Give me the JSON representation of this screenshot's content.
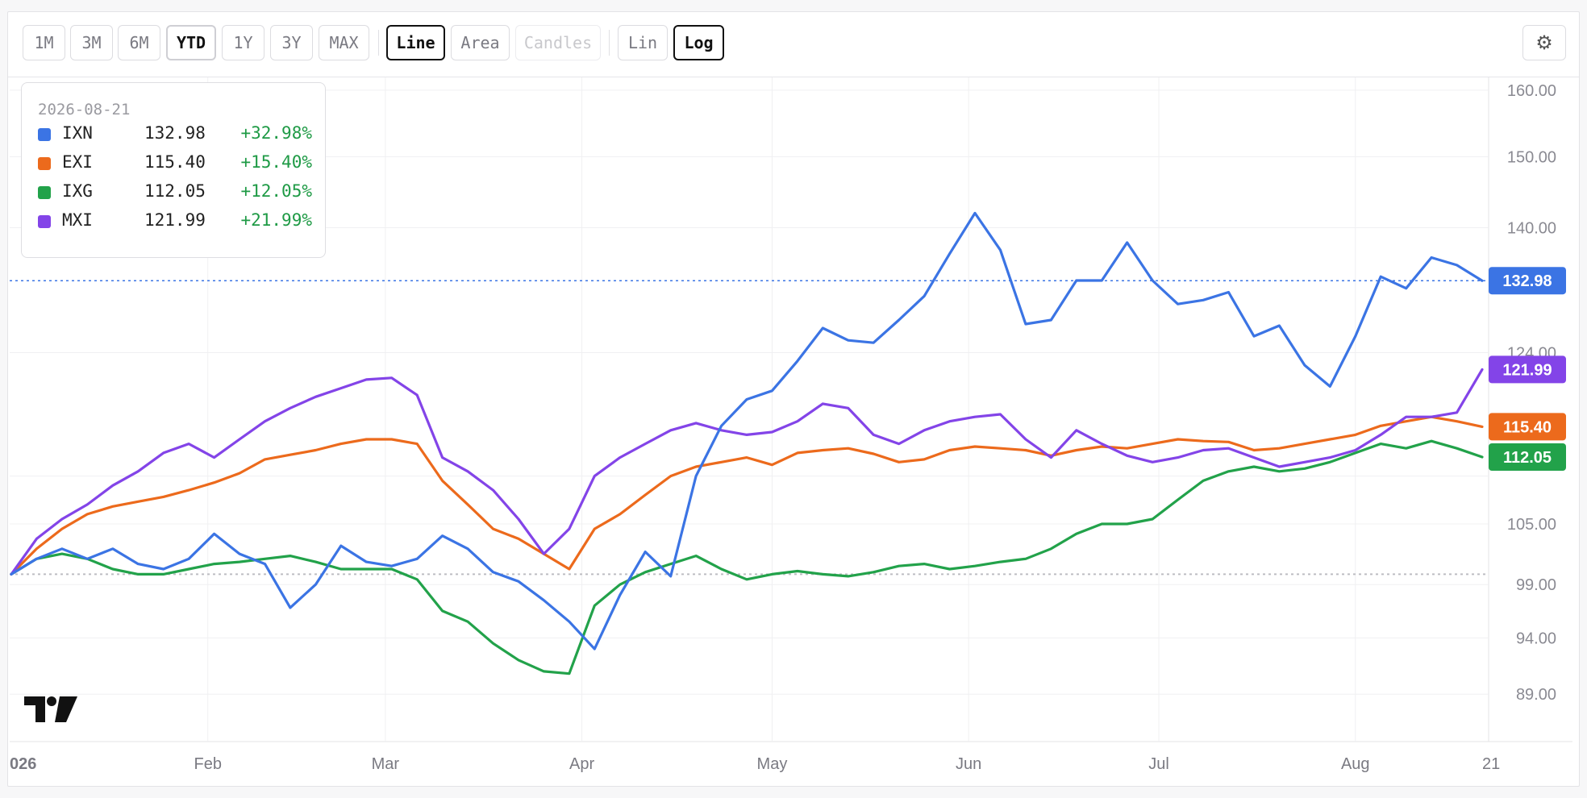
{
  "toolbar": {
    "ranges": [
      "1M",
      "3M",
      "6M",
      "YTD",
      "1Y",
      "3Y",
      "MAX"
    ],
    "selected_range": "YTD",
    "chart_types": [
      "Line",
      "Area",
      "Candles"
    ],
    "selected_chart_type": "Line",
    "disabled_chart_type": "Candles",
    "scales": [
      "Lin",
      "Log"
    ],
    "selected_scale": "Log",
    "settings_icon": "gear-icon"
  },
  "legend": {
    "date": "2026-08-21",
    "rows": [
      {
        "ticker": "IXN",
        "value": "132.98",
        "change": "+32.98%"
      },
      {
        "ticker": "EXI",
        "value": "115.40",
        "change": "+15.40%"
      },
      {
        "ticker": "IXG",
        "value": "112.05",
        "change": "+12.05%"
      },
      {
        "ticker": "MXI",
        "value": "121.99",
        "change": "+21.99%"
      }
    ]
  },
  "chart_data": {
    "type": "line",
    "scale": "log",
    "baseline": 100,
    "ylim": [
      85,
      162
    ],
    "y_ticks": [
      "160.00",
      "150.00",
      "140.00",
      "124.00",
      "105.00",
      "99.00",
      "94.00",
      "89.00"
    ],
    "y_ticks_hidden": [
      "110.00"
    ],
    "x_labels": [
      "026",
      "Feb",
      "Mar",
      "Apr",
      "May",
      "Jun",
      "Jul",
      "Aug",
      "21"
    ],
    "x_range": [
      "2026-01-01",
      "2026-08-21"
    ],
    "grid": true,
    "legend_position": "top-left",
    "series": [
      {
        "name": "IXN",
        "color": "#3b74e4",
        "last_label": "132.98",
        "crosshair": true,
        "x": [
          "2026-01-01",
          "2026-01-05",
          "2026-01-09",
          "2026-01-13",
          "2026-01-17",
          "2026-01-21",
          "2026-01-25",
          "2026-01-29",
          "2026-02-02",
          "2026-02-06",
          "2026-02-10",
          "2026-02-14",
          "2026-02-18",
          "2026-02-22",
          "2026-02-26",
          "2026-03-02",
          "2026-03-06",
          "2026-03-10",
          "2026-03-14",
          "2026-03-18",
          "2026-03-22",
          "2026-03-26",
          "2026-03-30",
          "2026-04-03",
          "2026-04-07",
          "2026-04-11",
          "2026-04-15",
          "2026-04-19",
          "2026-04-23",
          "2026-04-27",
          "2026-05-01",
          "2026-05-05",
          "2026-05-09",
          "2026-05-13",
          "2026-05-17",
          "2026-05-21",
          "2026-05-25",
          "2026-05-29",
          "2026-06-02",
          "2026-06-06",
          "2026-06-10",
          "2026-06-14",
          "2026-06-18",
          "2026-06-22",
          "2026-06-26",
          "2026-06-30",
          "2026-07-04",
          "2026-07-08",
          "2026-07-12",
          "2026-07-16",
          "2026-07-20",
          "2026-07-24",
          "2026-07-28",
          "2026-08-01",
          "2026-08-05",
          "2026-08-09",
          "2026-08-13",
          "2026-08-17",
          "2026-08-21"
        ],
        "values": [
          100,
          101.5,
          102.5,
          101.5,
          102.5,
          101,
          100.5,
          101.5,
          104,
          102,
          101,
          96.8,
          99,
          102.8,
          101.2,
          100.8,
          101.5,
          103.8,
          102.5,
          100.2,
          99.3,
          97.5,
          95.5,
          93,
          98,
          102.2,
          99.8,
          110,
          115.5,
          118.5,
          119.5,
          123,
          127,
          125.5,
          125.2,
          128,
          131,
          136.5,
          142,
          137,
          127.5,
          128,
          133,
          133,
          138,
          133,
          130,
          130.5,
          131.5,
          126,
          127.3,
          122.5,
          120,
          126,
          133.5,
          132,
          136,
          135,
          132.98
        ]
      },
      {
        "name": "EXI",
        "color": "#ec6a1c",
        "last_label": "115.40",
        "x": [
          "2026-01-01",
          "2026-01-05",
          "2026-01-09",
          "2026-01-13",
          "2026-01-17",
          "2026-01-21",
          "2026-01-25",
          "2026-01-29",
          "2026-02-02",
          "2026-02-06",
          "2026-02-10",
          "2026-02-14",
          "2026-02-18",
          "2026-02-22",
          "2026-02-26",
          "2026-03-02",
          "2026-03-06",
          "2026-03-10",
          "2026-03-14",
          "2026-03-18",
          "2026-03-22",
          "2026-03-26",
          "2026-03-30",
          "2026-04-03",
          "2026-04-07",
          "2026-04-11",
          "2026-04-15",
          "2026-04-19",
          "2026-04-23",
          "2026-04-27",
          "2026-05-01",
          "2026-05-05",
          "2026-05-09",
          "2026-05-13",
          "2026-05-17",
          "2026-05-21",
          "2026-05-25",
          "2026-05-29",
          "2026-06-02",
          "2026-06-06",
          "2026-06-10",
          "2026-06-14",
          "2026-06-18",
          "2026-06-22",
          "2026-06-26",
          "2026-06-30",
          "2026-07-04",
          "2026-07-08",
          "2026-07-12",
          "2026-07-16",
          "2026-07-20",
          "2026-07-24",
          "2026-07-28",
          "2026-08-01",
          "2026-08-05",
          "2026-08-09",
          "2026-08-13",
          "2026-08-17",
          "2026-08-21"
        ],
        "values": [
          100,
          102.5,
          104.5,
          106,
          106.8,
          107.3,
          107.8,
          108.5,
          109.3,
          110.3,
          111.8,
          112.3,
          112.8,
          113.5,
          114,
          114,
          113.5,
          109.5,
          107,
          104.5,
          103.5,
          102,
          100.5,
          104.5,
          106,
          108,
          110,
          111,
          111.5,
          112,
          111.2,
          112.5,
          112.8,
          113,
          112.4,
          111.5,
          111.8,
          112.8,
          113.2,
          113,
          112.8,
          112.2,
          112.8,
          113.2,
          113,
          113.5,
          114,
          113.8,
          113.7,
          112.8,
          113,
          113.5,
          114,
          114.5,
          115.5,
          116,
          116.5,
          116,
          115.4
        ]
      },
      {
        "name": "IXG",
        "color": "#22a24a",
        "last_label": "112.05",
        "x": [
          "2026-01-01",
          "2026-01-05",
          "2026-01-09",
          "2026-01-13",
          "2026-01-17",
          "2026-01-21",
          "2026-01-25",
          "2026-01-29",
          "2026-02-02",
          "2026-02-06",
          "2026-02-10",
          "2026-02-14",
          "2026-02-18",
          "2026-02-22",
          "2026-02-26",
          "2026-03-02",
          "2026-03-06",
          "2026-03-10",
          "2026-03-14",
          "2026-03-18",
          "2026-03-22",
          "2026-03-26",
          "2026-03-30",
          "2026-04-03",
          "2026-04-07",
          "2026-04-11",
          "2026-04-15",
          "2026-04-19",
          "2026-04-23",
          "2026-04-27",
          "2026-05-01",
          "2026-05-05",
          "2026-05-09",
          "2026-05-13",
          "2026-05-17",
          "2026-05-21",
          "2026-05-25",
          "2026-05-29",
          "2026-06-02",
          "2026-06-06",
          "2026-06-10",
          "2026-06-14",
          "2026-06-18",
          "2026-06-22",
          "2026-06-26",
          "2026-06-30",
          "2026-07-04",
          "2026-07-08",
          "2026-07-12",
          "2026-07-16",
          "2026-07-20",
          "2026-07-24",
          "2026-07-28",
          "2026-08-01",
          "2026-08-05",
          "2026-08-09",
          "2026-08-13",
          "2026-08-17",
          "2026-08-21"
        ],
        "values": [
          100,
          101.5,
          102,
          101.5,
          100.5,
          100,
          100,
          100.5,
          101,
          101.2,
          101.5,
          101.8,
          101.2,
          100.5,
          100.5,
          100.5,
          99.5,
          96.5,
          95.5,
          93.5,
          92,
          91,
          90.8,
          97,
          99,
          100.2,
          101,
          101.8,
          100.5,
          99.5,
          100,
          100.3,
          100,
          99.8,
          100.2,
          100.8,
          101,
          100.5,
          100.8,
          101.2,
          101.5,
          102.5,
          104,
          105,
          105,
          105.5,
          107.5,
          109.5,
          110.5,
          111,
          110.5,
          110.8,
          111.5,
          112.5,
          113.5,
          113,
          113.8,
          113,
          112.05
        ]
      },
      {
        "name": "MXI",
        "color": "#8344e8",
        "last_label": "121.99",
        "x": [
          "2026-01-01",
          "2026-01-05",
          "2026-01-09",
          "2026-01-13",
          "2026-01-17",
          "2026-01-21",
          "2026-01-25",
          "2026-01-29",
          "2026-02-02",
          "2026-02-06",
          "2026-02-10",
          "2026-02-14",
          "2026-02-18",
          "2026-02-22",
          "2026-02-26",
          "2026-03-02",
          "2026-03-06",
          "2026-03-10",
          "2026-03-14",
          "2026-03-18",
          "2026-03-22",
          "2026-03-26",
          "2026-03-30",
          "2026-04-03",
          "2026-04-07",
          "2026-04-11",
          "2026-04-15",
          "2026-04-19",
          "2026-04-23",
          "2026-04-27",
          "2026-05-01",
          "2026-05-05",
          "2026-05-09",
          "2026-05-13",
          "2026-05-17",
          "2026-05-21",
          "2026-05-25",
          "2026-05-29",
          "2026-06-02",
          "2026-06-06",
          "2026-06-10",
          "2026-06-14",
          "2026-06-18",
          "2026-06-22",
          "2026-06-26",
          "2026-06-30",
          "2026-07-04",
          "2026-07-08",
          "2026-07-12",
          "2026-07-16",
          "2026-07-20",
          "2026-07-24",
          "2026-07-28",
          "2026-08-01",
          "2026-08-05",
          "2026-08-09",
          "2026-08-13",
          "2026-08-17",
          "2026-08-21"
        ],
        "values": [
          100,
          103.5,
          105.5,
          107,
          109,
          110.5,
          112.5,
          113.5,
          112,
          114,
          116,
          117.5,
          118.8,
          119.8,
          120.8,
          121,
          119,
          112,
          110.5,
          108.5,
          105.5,
          102,
          104.5,
          110,
          112,
          113.5,
          115,
          115.8,
          115,
          114.5,
          114.8,
          116,
          118,
          117.5,
          114.5,
          113.5,
          115,
          116,
          116.5,
          116.8,
          114,
          112,
          115,
          113.5,
          112.2,
          111.5,
          112,
          112.8,
          113,
          112,
          111,
          111.5,
          112,
          112.8,
          114.5,
          116.5,
          116.5,
          117,
          121.99
        ]
      }
    ]
  }
}
